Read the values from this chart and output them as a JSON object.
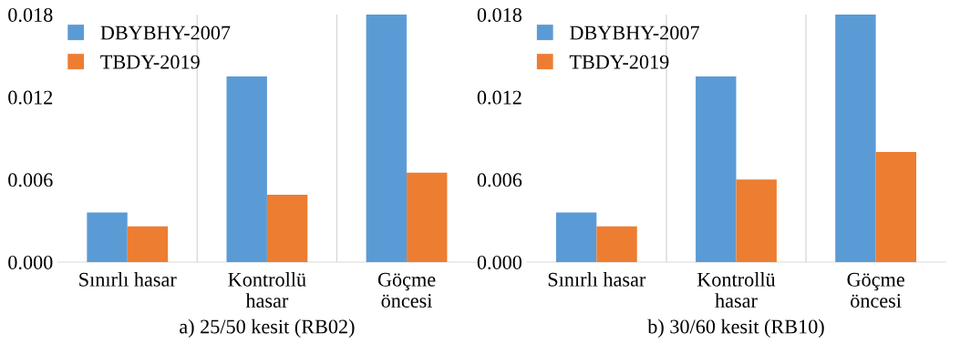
{
  "chart_data": [
    {
      "type": "bar",
      "xlabel": "a) 25/50 kesit (RB02)",
      "categories": [
        "Sınırlı hasar",
        "Kontrollü\nhasar",
        "Göçme\nöncesi"
      ],
      "series": [
        {
          "name": "DBYBHY-2007",
          "color": "#5b9bd5",
          "values": [
            0.0036,
            0.0135,
            0.018
          ]
        },
        {
          "name": "TBDY-2019",
          "color": "#ed7d31",
          "values": [
            0.0026,
            0.0049,
            0.0065
          ]
        }
      ],
      "ylim": [
        0,
        0.018
      ],
      "yticks": [
        {
          "value": 0,
          "label": "0.000"
        },
        {
          "value": 0.006,
          "label": "0.006"
        },
        {
          "value": 0.012,
          "label": "0.012"
        },
        {
          "value": 0.018,
          "label": "0.018"
        }
      ],
      "grid": "x",
      "legend": "top left"
    },
    {
      "type": "bar",
      "xlabel": "b) 30/60 kesit (RB10)",
      "categories": [
        "Sınırlı hasar",
        "Kontrollü\nhasar",
        "Göçme\nöncesi"
      ],
      "series": [
        {
          "name": "DBYBHY-2007",
          "color": "#5b9bd5",
          "values": [
            0.0036,
            0.0135,
            0.018
          ]
        },
        {
          "name": "TBDY-2019",
          "color": "#ed7d31",
          "values": [
            0.0026,
            0.006,
            0.008
          ]
        }
      ],
      "ylim": [
        0,
        0.018
      ],
      "yticks": [
        {
          "value": 0,
          "label": "0.000"
        },
        {
          "value": 0.006,
          "label": "0.006"
        },
        {
          "value": 0.012,
          "label": "0.012"
        },
        {
          "value": 0.018,
          "label": "0.018"
        }
      ],
      "grid": "x",
      "legend": "top left"
    }
  ]
}
